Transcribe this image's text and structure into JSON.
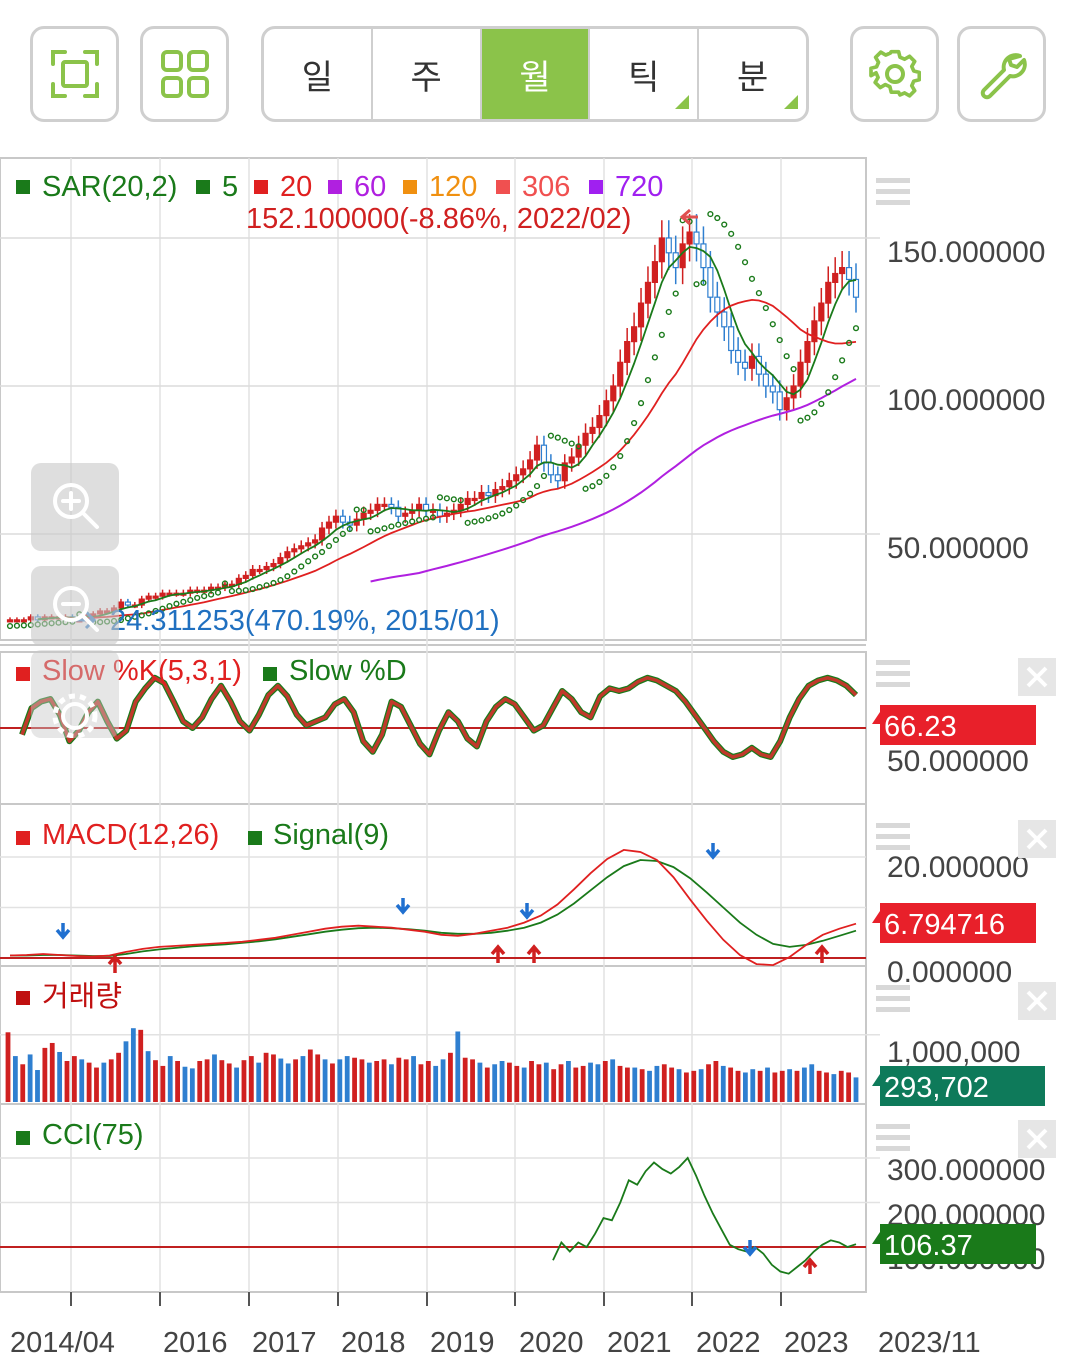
{
  "toolbar": {
    "tabs": [
      {
        "label": "일",
        "active": false,
        "submenu": false
      },
      {
        "label": "주",
        "active": false,
        "submenu": false
      },
      {
        "label": "월",
        "active": true,
        "submenu": false
      },
      {
        "label": "틱",
        "active": false,
        "submenu": true
      },
      {
        "label": "분",
        "active": false,
        "submenu": true
      }
    ],
    "accent_color": "#8bc34a",
    "icons": [
      "fullscreen-icon",
      "grid-layout-icon",
      "settings-gear-icon",
      "wrench-icon"
    ]
  },
  "main_panel": {
    "legend_title": "SAR(20,2)",
    "legend_items": [
      {
        "label": "5",
        "color": "#1a7a1a"
      },
      {
        "label": "20",
        "color": "#e02020"
      },
      {
        "label": "60",
        "color": "#b020e0"
      },
      {
        "label": "120",
        "color": "#f09010"
      },
      {
        "label": "306",
        "color": "#f05050"
      },
      {
        "label": "720",
        "color": "#a020f0"
      }
    ],
    "high_annotation": "152.100000(-8.86%, 2022/02)",
    "low_annotation": "24.311253(470.19%, 2015/01)",
    "y_labels": [
      "150.000000",
      "100.000000",
      "50.000000"
    ],
    "y_values": [
      150,
      100,
      50
    ]
  },
  "stochastic_panel": {
    "title_k": "Slow %K(5,3,1)",
    "title_d": "Slow %D",
    "current_value": "66.23",
    "y_label": "50.000000"
  },
  "macd_panel": {
    "title_macd": "MACD(12,26)",
    "title_signal": "Signal(9)",
    "current_value": "6.794716",
    "y_labels": [
      "20.000000",
      "0.000000"
    ]
  },
  "volume_panel": {
    "title": "거래량",
    "current_value": "293,702",
    "y_label": "1,000,000"
  },
  "cci_panel": {
    "title": "CCI(75)",
    "current_value": "106.37",
    "y_labels": [
      "300.000000",
      "200.000000",
      "100.000000"
    ]
  },
  "x_axis": {
    "labels": [
      "2014/04",
      "2016",
      "2017",
      "2018",
      "2019",
      "2020",
      "2021",
      "2022",
      "2023"
    ],
    "last_date": "2023/11"
  },
  "chart_data": {
    "type": "candlestick",
    "period": "monthly",
    "main_y_range": [
      15,
      170
    ],
    "close_approx": [
      21,
      21,
      21,
      22,
      21,
      22,
      22,
      22,
      22,
      21,
      21,
      23,
      23,
      24,
      24,
      25,
      27,
      26,
      26,
      28,
      29,
      29,
      30,
      30,
      30,
      30,
      31,
      31,
      31,
      32,
      32,
      33,
      33,
      35,
      36,
      38,
      38,
      39,
      40,
      42,
      44,
      45,
      46,
      47,
      48,
      52,
      54,
      56,
      54,
      53,
      55,
      57,
      58,
      60,
      60,
      59,
      56,
      57,
      58,
      60,
      58,
      58,
      56,
      57,
      58,
      60,
      62,
      62,
      64,
      63,
      65,
      66,
      68,
      70,
      72,
      75,
      80,
      74,
      70,
      68,
      74,
      76,
      80,
      84,
      86,
      90,
      95,
      100,
      108,
      115,
      120,
      128,
      135,
      142,
      150,
      145,
      140,
      148,
      152,
      148,
      140,
      130,
      125,
      120,
      112,
      108,
      106,
      110,
      104,
      100,
      98,
      92,
      96,
      100,
      108,
      115,
      122,
      128,
      135,
      138,
      140,
      136,
      130
    ],
    "stoch_k_approx": [
      45,
      65,
      70,
      72,
      60,
      40,
      48,
      62,
      70,
      55,
      42,
      48,
      70,
      80,
      88,
      84,
      70,
      55,
      50,
      58,
      72,
      82,
      70,
      55,
      48,
      60,
      75,
      82,
      74,
      60,
      52,
      55,
      58,
      68,
      72,
      62,
      40,
      32,
      45,
      70,
      66,
      52,
      38,
      30,
      48,
      62,
      55,
      42,
      36,
      55,
      66,
      72,
      68,
      58,
      48,
      52,
      65,
      78,
      72,
      62,
      58,
      74,
      80,
      78,
      80,
      85,
      88,
      86,
      82,
      78,
      70,
      60,
      50,
      40,
      32,
      28,
      30,
      35,
      30,
      28,
      40,
      58,
      72,
      82,
      86,
      88,
      86,
      82,
      75
    ],
    "macd_approx": [
      0.5,
      0.6,
      0.8,
      0.6,
      0.4,
      0.3,
      0.5,
      1.2,
      1.8,
      2.2,
      2.4,
      2.6,
      2.8,
      3.0,
      3.2,
      3.6,
      4.0,
      4.6,
      5.2,
      5.8,
      6.2,
      6.4,
      6.2,
      6.0,
      5.6,
      5.2,
      4.6,
      4.4,
      4.8,
      5.4,
      6.0,
      7.0,
      8.4,
      10.6,
      13.6,
      16.8,
      19.6,
      21.4,
      21.0,
      19.4,
      16.0,
      11.6,
      7.4,
      3.6,
      0.6,
      -1.2,
      -1.4,
      0.2,
      2.6,
      4.6,
      5.8,
      6.794716
    ],
    "signal_approx": [
      0.5,
      0.5,
      0.6,
      0.6,
      0.5,
      0.4,
      0.4,
      0.8,
      1.3,
      1.7,
      2.0,
      2.3,
      2.5,
      2.7,
      3.0,
      3.3,
      3.7,
      4.2,
      4.7,
      5.2,
      5.6,
      5.9,
      6.0,
      5.9,
      5.7,
      5.4,
      5.0,
      4.8,
      4.8,
      5.0,
      5.4,
      6.0,
      7.0,
      8.6,
      10.8,
      13.4,
      16.0,
      18.2,
      19.4,
      19.2,
      18.0,
      15.8,
      13.0,
      10.0,
      7.0,
      4.6,
      2.8,
      2.2,
      2.6,
      3.4,
      4.4,
      5.4
    ],
    "volume_approx": [
      850,
      560,
      460,
      580,
      390,
      660,
      720,
      610,
      500,
      560,
      520,
      480,
      420,
      480,
      520,
      600,
      740,
      900,
      880,
      620,
      510,
      440,
      560,
      500,
      430,
      410,
      500,
      520,
      580,
      510,
      470,
      420,
      510,
      560,
      480,
      600,
      580,
      530,
      470,
      520,
      560,
      640,
      580,
      520,
      470,
      520,
      560,
      540,
      520,
      480,
      500,
      520,
      460,
      540,
      520,
      560,
      460,
      500,
      440,
      520,
      600,
      860,
      540,
      520,
      480,
      420,
      460,
      500,
      480,
      440,
      420,
      500,
      460,
      480,
      400,
      460,
      500,
      420,
      440,
      480,
      460,
      500,
      520,
      440,
      420,
      420,
      400,
      380,
      440,
      460,
      420,
      400,
      360,
      380,
      400,
      460,
      500,
      440,
      420,
      380,
      360,
      400,
      380,
      420,
      360,
      380,
      400,
      380,
      420,
      460,
      380,
      360,
      340,
      380,
      360,
      300
    ],
    "cci_approx": [
      70,
      110,
      90,
      110,
      100,
      130,
      165,
      160,
      200,
      250,
      240,
      270,
      290,
      275,
      265,
      280,
      300,
      260,
      215,
      175,
      140,
      105,
      95,
      90,
      100,
      85,
      60,
      45,
      40,
      55,
      70,
      90,
      105,
      115,
      110,
      100,
      106.37
    ]
  }
}
